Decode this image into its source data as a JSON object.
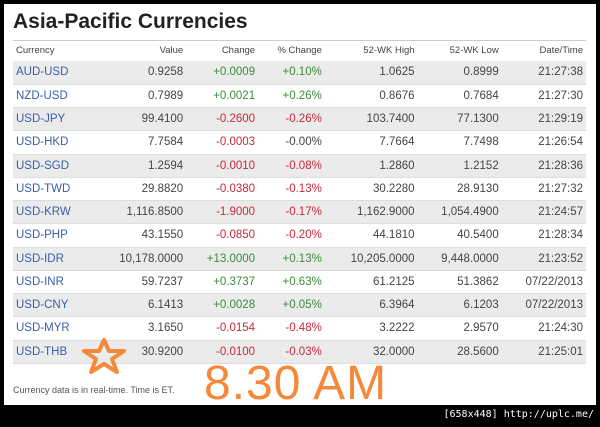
{
  "title": "Asia-Pacific Currencies",
  "columns": [
    "Currency",
    "Value",
    "Change",
    "% Change",
    "52-WK High",
    "52-WK Low",
    "Date/Time"
  ],
  "rows": [
    [
      "AUD-USD",
      "0.9258",
      "+0.0009",
      "+0.10%",
      "1.0625",
      "0.8999",
      "21:27:38"
    ],
    [
      "NZD-USD",
      "0.7989",
      "+0.0021",
      "+0.26%",
      "0.8676",
      "0.7684",
      "21:27:30"
    ],
    [
      "USD-JPY",
      "99.4100",
      "-0.2600",
      "-0.26%",
      "103.7400",
      "77.1300",
      "21:29:19"
    ],
    [
      "USD-HKD",
      "7.7584",
      "-0.0003",
      "-0.00%",
      "7.7664",
      "7.7498",
      "21:26:54"
    ],
    [
      "USD-SGD",
      "1.2594",
      "-0.0010",
      "-0.08%",
      "1.2860",
      "1.2152",
      "21:28:36"
    ],
    [
      "USD-TWD",
      "29.8820",
      "-0.0380",
      "-0.13%",
      "30.2280",
      "28.9130",
      "21:27:32"
    ],
    [
      "USD-KRW",
      "1,116.8500",
      "-1.9000",
      "-0.17%",
      "1,162.9000",
      "1,054.4900",
      "21:24:57"
    ],
    [
      "USD-PHP",
      "43.1550",
      "-0.0850",
      "-0.20%",
      "44.1810",
      "40.5400",
      "21:28:34"
    ],
    [
      "USD-IDR",
      "10,178.0000",
      "+13.0000",
      "+0.13%",
      "10,205.0000",
      "9,448.0000",
      "21:23:52"
    ],
    [
      "USD-INR",
      "59.7237",
      "+0.3737",
      "+0.63%",
      "61.2125",
      "51.3862",
      "07/22/2013"
    ],
    [
      "USD-CNY",
      "6.1413",
      "+0.0028",
      "+0.05%",
      "6.3964",
      "6.1203",
      "07/22/2013"
    ],
    [
      "USD-MYR",
      "3.1650",
      "-0.0154",
      "-0.48%",
      "3.2222",
      "2.9570",
      "21:24:30"
    ],
    [
      "USD-THB",
      "30.9200",
      "-0.0100",
      "-0.03%",
      "32.0000",
      "28.5600",
      "21:25:01"
    ]
  ],
  "footer": "Currency data is in real-time. Time is ET.",
  "annotation": "8.30 AM",
  "annotation_icon": "star-icon",
  "watermark": "[658x448] http://uplc.me/",
  "colors": {
    "link": "#3a5ea8",
    "positive": "#3d8a3d",
    "negative": "#c8283c",
    "annotation": "#f5883a"
  }
}
